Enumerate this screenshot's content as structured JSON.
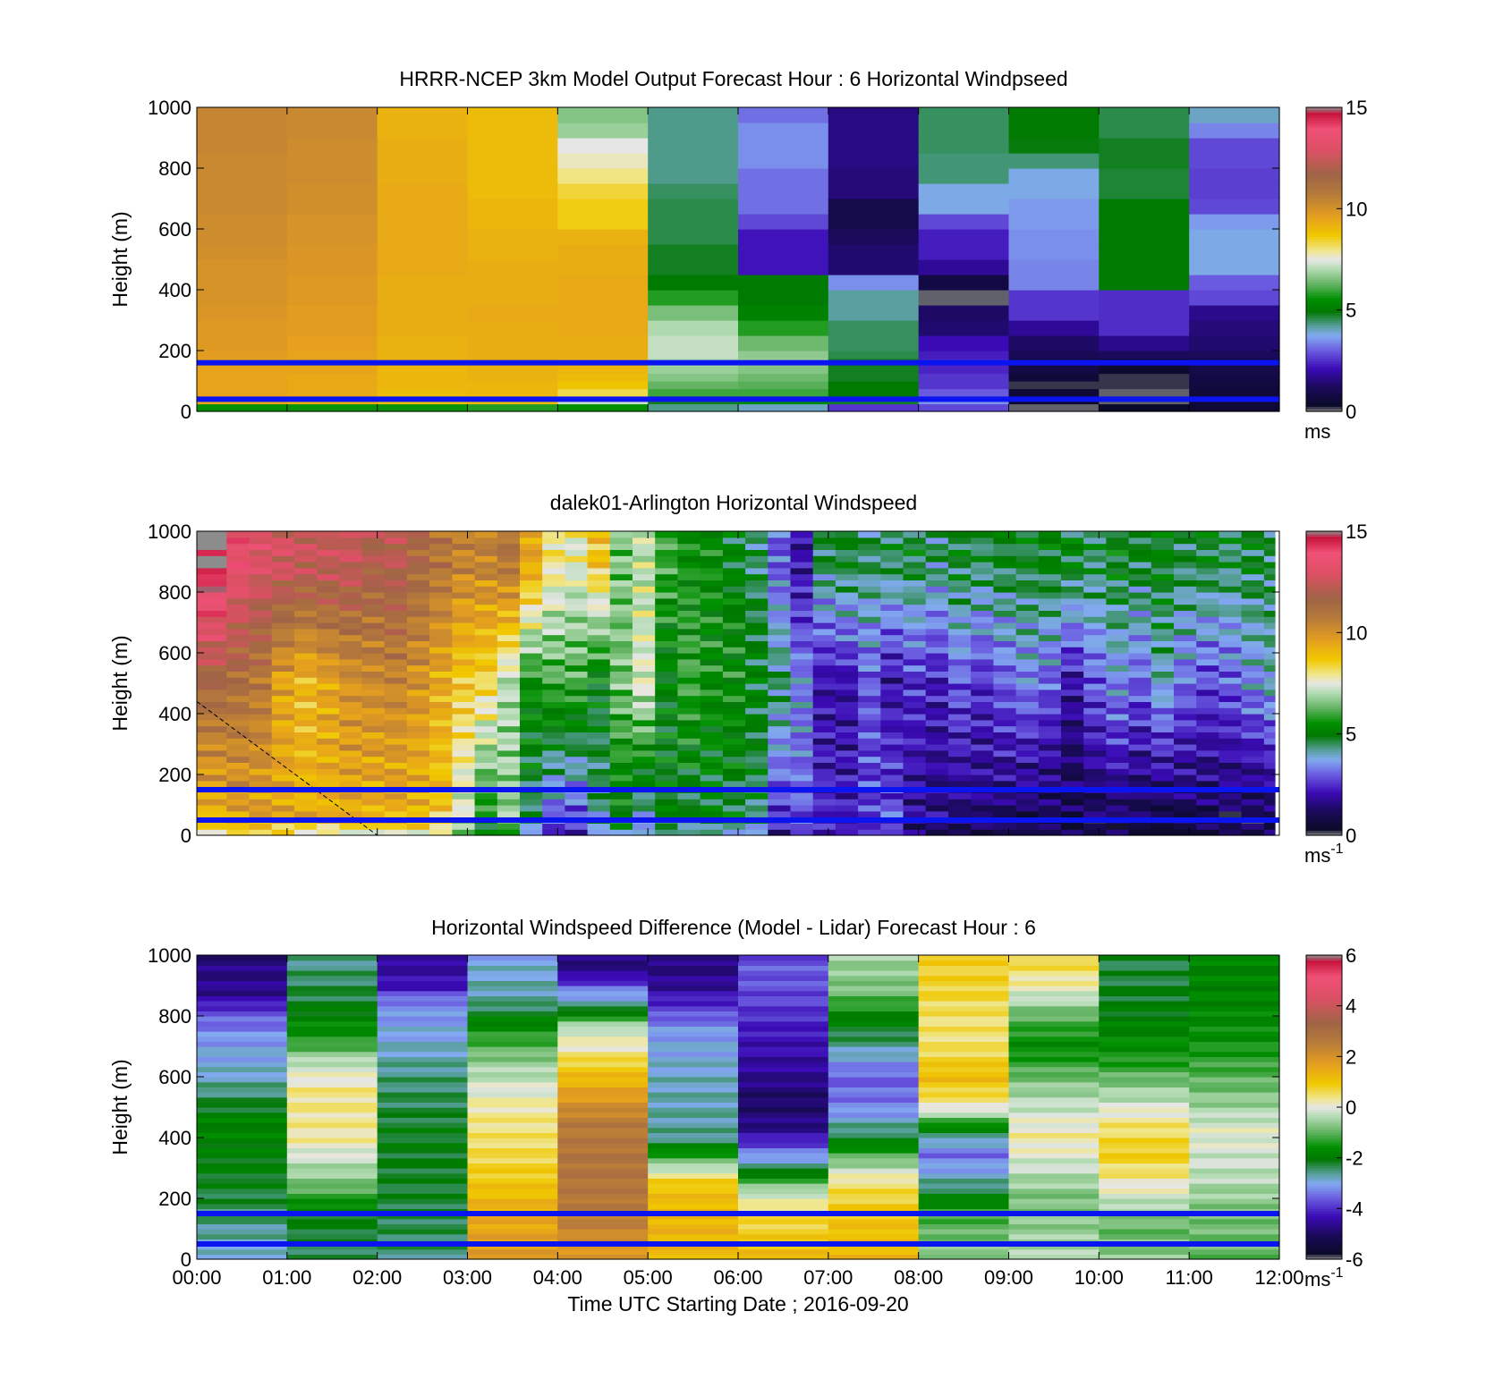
{
  "chart_data": [
    {
      "type": "heatmap",
      "title": "HRRR-NCEP 3km Model Output   Forecast Hour : 6 Horizontal Windpseed",
      "ylabel": "Height (m)",
      "ylim": [
        0,
        1000
      ],
      "yticks": [
        "0",
        "200",
        "400",
        "600",
        "800",
        "1000"
      ],
      "x_range_hours": [
        0,
        12
      ],
      "show_xtick_labels": false,
      "colorbar": {
        "ticks": [
          "0",
          "5",
          "10",
          "15"
        ],
        "range": [
          0,
          15
        ],
        "unit": "ms",
        "unit_sup": ""
      },
      "heights": [
        0,
        25,
        50,
        75,
        100,
        125,
        150,
        175,
        200,
        250,
        300,
        350,
        400,
        450,
        500,
        550,
        600,
        650,
        700,
        750,
        800,
        850,
        900,
        950
      ],
      "time_hours": [
        0,
        1,
        2,
        3,
        4,
        5,
        6,
        7,
        8,
        9,
        10,
        11
      ],
      "columns": [
        [
          5.5,
          9.5,
          9.5,
          9.5,
          9.5,
          9.5,
          9.5,
          9.7,
          9.8,
          9.8,
          9.9,
          10,
          10,
          10,
          10.1,
          10.2,
          10.2,
          10.3,
          10.3,
          10.3,
          10.3,
          10.4,
          10.4,
          10.4
        ],
        [
          5.6,
          9.3,
          9.4,
          9.4,
          9.4,
          9.5,
          9.5,
          9.5,
          9.6,
          9.7,
          9.7,
          9.8,
          9.8,
          9.9,
          9.9,
          10,
          10,
          10.1,
          10.1,
          10.2,
          10.2,
          10.2,
          10.3,
          10.3
        ],
        [
          5.6,
          9.0,
          9.0,
          9.1,
          9.1,
          9.1,
          9.2,
          9.2,
          9.2,
          9.3,
          9.3,
          9.3,
          9.3,
          9.4,
          9.4,
          9.4,
          9.4,
          9.4,
          9.4,
          9.3,
          9.3,
          9.3,
          9.2,
          9.2
        ],
        [
          5.8,
          9.0,
          9.1,
          9.1,
          9.2,
          9.2,
          9.3,
          9.3,
          9.3,
          9.3,
          9.4,
          9.3,
          9.3,
          9.3,
          9.2,
          9.2,
          9.1,
          9.1,
          9.0,
          9.0,
          9.0,
          9.0,
          9.0,
          9.0
        ],
        [
          5.5,
          7.2,
          8.3,
          8.8,
          9.0,
          9.1,
          9.2,
          9.3,
          9.3,
          9.4,
          9.4,
          9.4,
          9.4,
          9.3,
          9.3,
          9.2,
          8.6,
          8.6,
          8.4,
          8.0,
          7.7,
          7.5,
          6.8,
          6.6
        ],
        [
          4.3,
          4.8,
          6.0,
          6.3,
          6.6,
          6.8,
          7.0,
          7.2,
          7.2,
          7.0,
          6.5,
          5.8,
          5.0,
          4.8,
          4.8,
          4.6,
          4.6,
          4.6,
          4.5,
          4.3,
          4.3,
          4.3,
          4.3,
          4.3
        ],
        [
          4.0,
          5.5,
          6.0,
          6.2,
          6.4,
          6.6,
          6.8,
          6.7,
          6.4,
          5.8,
          5.2,
          5.0,
          5.0,
          2.2,
          2.2,
          2.2,
          2.8,
          3.2,
          3.2,
          3.2,
          3.5,
          3.5,
          3.5,
          3.2
        ],
        [
          2.6,
          4.8,
          5.0,
          5.0,
          4.8,
          4.8,
          4.8,
          4.6,
          4.5,
          4.5,
          4.2,
          4.2,
          3.5,
          1.4,
          1.4,
          1.2,
          0.9,
          0.9,
          1.5,
          1.5,
          1.6,
          1.6,
          1.6,
          1.6
        ],
        [
          2.8,
          3.5,
          3.0,
          2.6,
          2.6,
          2.4,
          2.4,
          2.3,
          2.1,
          1.4,
          1.3,
          0.1,
          0.8,
          1.8,
          2.3,
          2.3,
          2.8,
          3.8,
          3.8,
          4.4,
          4.4,
          4.5,
          4.5,
          4.5
        ],
        [
          0.1,
          0.4,
          0.5,
          0.2,
          0.6,
          0.8,
          1.0,
          1.1,
          1.3,
          1.8,
          2.6,
          2.6,
          3.4,
          3.4,
          3.5,
          3.5,
          3.6,
          3.6,
          3.8,
          3.8,
          4.4,
          4.9,
          5.0,
          5.0
        ],
        [
          0.3,
          0.1,
          0.1,
          0.2,
          0.2,
          0.4,
          0.7,
          1.2,
          1.7,
          2.5,
          2.5,
          2.5,
          5.0,
          5.0,
          5.0,
          5.0,
          5.0,
          5.0,
          4.7,
          4.7,
          4.8,
          4.8,
          4.6,
          4.6
        ],
        [
          0.5,
          0.6,
          0.6,
          0.7,
          0.8,
          0.9,
          1.0,
          1.2,
          1.4,
          1.5,
          1.7,
          2.8,
          3.0,
          3.8,
          3.8,
          3.8,
          3.6,
          2.8,
          2.7,
          2.7,
          2.8,
          2.8,
          3.4,
          4.0
        ]
      ],
      "reference_lines_m": [
        40,
        160
      ]
    },
    {
      "type": "heatmap",
      "title": "dalek01-Arlington  Horizontal Windspeed",
      "ylabel": "Height (m)",
      "ylim": [
        0,
        1000
      ],
      "yticks": [
        "0",
        "200",
        "400",
        "600",
        "800",
        "1000"
      ],
      "x_range_hours": [
        0,
        12
      ],
      "show_xtick_labels": false,
      "colorbar": {
        "ticks": [
          "0",
          "5",
          "10",
          "15"
        ],
        "range": [
          0,
          15
        ],
        "unit": "ms",
        "unit_sup": "-1"
      },
      "profile_times_hours": [
        0.0,
        0.33,
        0.58,
        0.83,
        1.08,
        1.33,
        1.58,
        1.83,
        2.08,
        2.33,
        2.58,
        2.83,
        3.08,
        3.33,
        3.58,
        3.83,
        4.08,
        4.33,
        4.58,
        4.83,
        5.08,
        5.33,
        5.58,
        5.83,
        6.08,
        6.33,
        6.58,
        6.83,
        7.08,
        7.33,
        7.58,
        7.83,
        8.08,
        8.33,
        8.58,
        8.83,
        9.08,
        9.33,
        9.58,
        9.83,
        10.08,
        10.33,
        10.58,
        10.83,
        11.08,
        11.33,
        11.58,
        11.83
      ],
      "profile_speed_at_50m": [
        9.0,
        9.5,
        9.6,
        9.5,
        9.3,
        9.3,
        9.4,
        9.2,
        9.2,
        9.0,
        8.6,
        7.2,
        5.5,
        6.7,
        4.5,
        3.0,
        2.8,
        4.2,
        5.0,
        3.8,
        5.0,
        4.6,
        5.0,
        4.8,
        4.5,
        2.5,
        3.0,
        2.4,
        2.2,
        2.6,
        3.0,
        1.8,
        1.6,
        1.4,
        1.4,
        1.2,
        1.0,
        1.0,
        0.8,
        1.0,
        1.2,
        1.0,
        0.8,
        0.9,
        1.0,
        1.0,
        0.9,
        1.0
      ],
      "profile_speed_at_500m": [
        11.5,
        11.2,
        10.8,
        9.5,
        9.0,
        9.5,
        10.0,
        10.2,
        10.4,
        10.0,
        9.4,
        8.6,
        8.3,
        7.0,
        5.5,
        6.0,
        6.0,
        5.0,
        6.5,
        7.5,
        5.0,
        6.0,
        5.5,
        5.5,
        5.0,
        4.5,
        3.5,
        2.0,
        2.0,
        3.0,
        2.0,
        2.5,
        2.2,
        3.0,
        2.5,
        3.0,
        3.4,
        3.0,
        2.0,
        3.0,
        3.5,
        3.0,
        4.0,
        3.2,
        2.8,
        3.0,
        3.5,
        4.0
      ],
      "profile_speed_at_900m": [
        15.0,
        13.5,
        13.0,
        12.8,
        12.5,
        12.5,
        12.5,
        12.0,
        12.2,
        11.5,
        11.0,
        10.5,
        10.5,
        11.0,
        9.5,
        8.0,
        7.6,
        8.8,
        6.5,
        7.2,
        6.0,
        5.5,
        5.5,
        5.0,
        4.5,
        3.0,
        2.0,
        4.6,
        4.8,
        4.5,
        4.6,
        4.8,
        4.4,
        4.8,
        4.6,
        4.8,
        4.8,
        5.0,
        5.0,
        4.6,
        5.0,
        4.8,
        5.0,
        4.6,
        4.8,
        4.6,
        4.8,
        4.6
      ],
      "reference_lines_m": [
        50,
        150
      ]
    },
    {
      "type": "heatmap",
      "title": "Horizontal Windspeed Difference (Model - Lidar) Forecast Hour : 6",
      "ylabel": "Height (m)",
      "xlabel": "Time UTC  Starting Date ; 2016-09-20",
      "ylim": [
        0,
        1000
      ],
      "yticks": [
        "0",
        "200",
        "400",
        "600",
        "800",
        "1000"
      ],
      "xticks": [
        "00:00",
        "01:00",
        "02:00",
        "03:00",
        "04:00",
        "05:00",
        "06:00",
        "07:00",
        "08:00",
        "09:00",
        "10:00",
        "11:00",
        "12:00"
      ],
      "x_range_hours": [
        0,
        12
      ],
      "show_xtick_labels": true,
      "colorbar": {
        "ticks": [
          "-6",
          "-4",
          "-2",
          "0",
          "2",
          "4",
          "6"
        ],
        "range": [
          -6,
          6
        ],
        "unit": "ms",
        "unit_sup": "-1"
      },
      "time_hours": [
        0,
        1,
        2,
        3,
        4,
        5,
        6,
        7,
        8,
        9,
        10,
        11
      ],
      "column_anchors": [
        [
          [
            0,
            -3.0
          ],
          [
            150,
            -2.4
          ],
          [
            300,
            -2.0
          ],
          [
            450,
            -1.8
          ],
          [
            600,
            -2.8
          ],
          [
            720,
            -3.1
          ],
          [
            800,
            -3.6
          ],
          [
            870,
            -4.6
          ],
          [
            1000,
            -4.8
          ]
        ],
        [
          [
            0,
            -2.4
          ],
          [
            150,
            -2.0
          ],
          [
            250,
            -0.8
          ],
          [
            400,
            0.3
          ],
          [
            550,
            0.4
          ],
          [
            650,
            -0.3
          ],
          [
            720,
            -1.4
          ],
          [
            850,
            -2.2
          ],
          [
            1000,
            -2.6
          ]
        ],
        [
          [
            0,
            -2.5
          ],
          [
            200,
            -2.2
          ],
          [
            400,
            -2.1
          ],
          [
            600,
            -2.5
          ],
          [
            750,
            -3.0
          ],
          [
            850,
            -3.3
          ],
          [
            900,
            -4.3
          ],
          [
            1000,
            -4.6
          ]
        ],
        [
          [
            0,
            1.8
          ],
          [
            150,
            1.5
          ],
          [
            250,
            1.0
          ],
          [
            350,
            0.6
          ],
          [
            500,
            0.3
          ],
          [
            650,
            -0.6
          ],
          [
            750,
            -1.5
          ],
          [
            850,
            -2.6
          ],
          [
            1000,
            -3.0
          ]
        ],
        [
          [
            0,
            1.8
          ],
          [
            150,
            2.6
          ],
          [
            300,
            2.8
          ],
          [
            450,
            2.6
          ],
          [
            600,
            1.2
          ],
          [
            700,
            0.2
          ],
          [
            760,
            -0.2
          ],
          [
            830,
            -2.5
          ],
          [
            880,
            -3.2
          ],
          [
            940,
            -4.6
          ],
          [
            1000,
            -4.8
          ]
        ],
        [
          [
            0,
            1.3
          ],
          [
            150,
            1.3
          ],
          [
            250,
            1.0
          ],
          [
            320,
            -0.8
          ],
          [
            400,
            -2.6
          ],
          [
            600,
            -2.8
          ],
          [
            750,
            -3.1
          ],
          [
            820,
            -3.8
          ],
          [
            900,
            -4.6
          ],
          [
            1000,
            -4.8
          ]
        ],
        [
          [
            0,
            1.2
          ],
          [
            150,
            0.6
          ],
          [
            220,
            -0.2
          ],
          [
            300,
            -2.4
          ],
          [
            420,
            -4.6
          ],
          [
            520,
            -5.0
          ],
          [
            600,
            -4.6
          ],
          [
            750,
            -4.2
          ],
          [
            850,
            -3.8
          ],
          [
            950,
            -3.6
          ],
          [
            1000,
            -3.8
          ]
        ],
        [
          [
            0,
            1.3
          ],
          [
            150,
            1.0
          ],
          [
            250,
            0.5
          ],
          [
            300,
            -0.3
          ],
          [
            400,
            -2.2
          ],
          [
            500,
            -3.3
          ],
          [
            600,
            -3.6
          ],
          [
            700,
            -2.6
          ],
          [
            800,
            -1.8
          ],
          [
            880,
            -0.8
          ],
          [
            1000,
            -0.5
          ]
        ],
        [
          [
            0,
            -0.6
          ],
          [
            150,
            -1.2
          ],
          [
            250,
            -2.6
          ],
          [
            350,
            -3.5
          ],
          [
            420,
            -2.2
          ],
          [
            500,
            0.2
          ],
          [
            600,
            1.2
          ],
          [
            700,
            0.5
          ],
          [
            800,
            0.5
          ],
          [
            900,
            0.8
          ],
          [
            1000,
            0.8
          ]
        ],
        [
          [
            0,
            -0.4
          ],
          [
            100,
            -0.6
          ],
          [
            200,
            -0.8
          ],
          [
            400,
            0.3
          ],
          [
            550,
            -0.5
          ],
          [
            700,
            -1.7
          ],
          [
            800,
            -1.0
          ],
          [
            900,
            0.2
          ],
          [
            1000,
            0.8
          ]
        ],
        [
          [
            0,
            -0.6
          ],
          [
            100,
            -1.0
          ],
          [
            250,
            0.2
          ],
          [
            350,
            0.9
          ],
          [
            450,
            0.4
          ],
          [
            550,
            -0.5
          ],
          [
            650,
            -1.4
          ],
          [
            800,
            -2.0
          ],
          [
            950,
            -2.3
          ],
          [
            1000,
            -2.2
          ]
        ],
        [
          [
            0,
            -1.0
          ],
          [
            150,
            -0.8
          ],
          [
            280,
            -0.3
          ],
          [
            420,
            0.0
          ],
          [
            550,
            -0.8
          ],
          [
            700,
            -1.5
          ],
          [
            850,
            -1.8
          ],
          [
            1000,
            -1.8
          ]
        ]
      ],
      "reference_lines_m": [
        50,
        150
      ]
    }
  ]
}
